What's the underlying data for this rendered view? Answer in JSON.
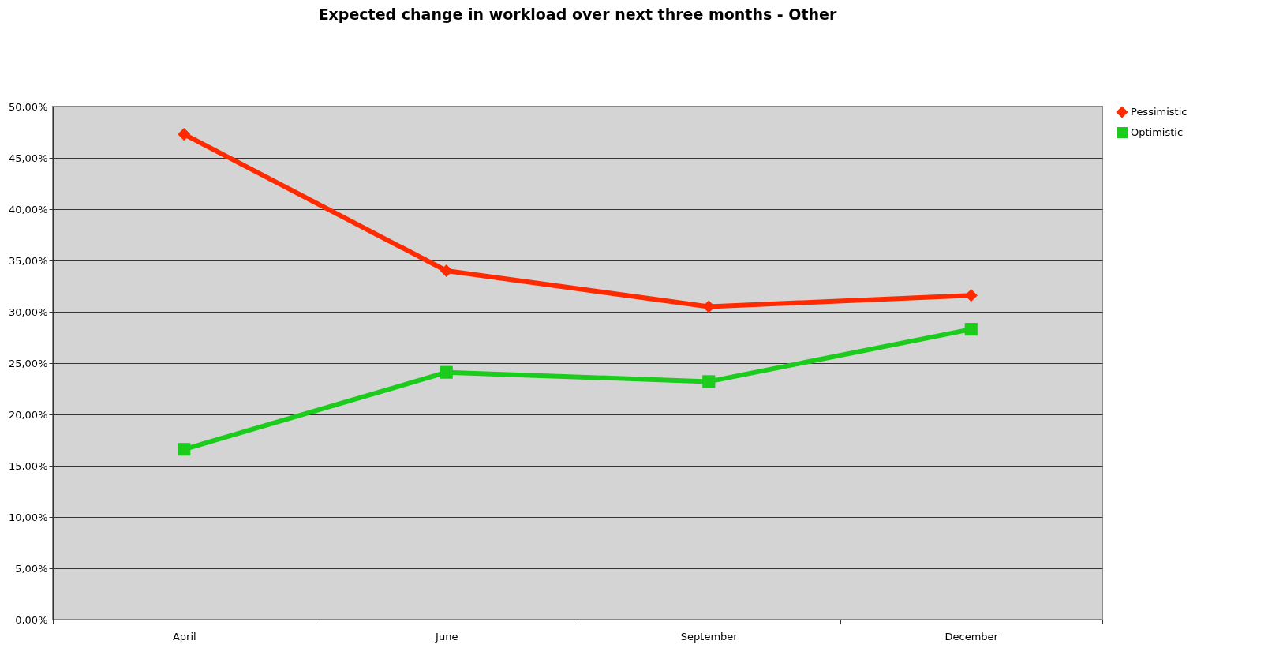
{
  "chart_data": {
    "type": "line",
    "title": "Expected change in workload over next three months - Other",
    "categories": [
      "April",
      "June",
      "September",
      "December"
    ],
    "series": [
      {
        "name": "Pessimistic",
        "color": "#ff2a00",
        "marker": "diamond",
        "values": [
          47.3,
          34.0,
          30.5,
          31.6
        ]
      },
      {
        "name": "Optimistic",
        "color": "#1ccc1c",
        "marker": "square",
        "values": [
          16.6,
          24.1,
          23.2,
          28.3
        ]
      }
    ],
    "ylim": [
      0,
      50
    ],
    "yticks": [
      {
        "value": 0,
        "label": "0,00%"
      },
      {
        "value": 5,
        "label": "5,00%"
      },
      {
        "value": 10,
        "label": "10,00%"
      },
      {
        "value": 15,
        "label": "15,00%"
      },
      {
        "value": 20,
        "label": "20,00%"
      },
      {
        "value": 25,
        "label": "25,00%"
      },
      {
        "value": 30,
        "label": "30,00%"
      },
      {
        "value": 35,
        "label": "35,00%"
      },
      {
        "value": 40,
        "label": "40,00%"
      },
      {
        "value": 45,
        "label": "45,00%"
      },
      {
        "value": 50,
        "label": "50,00%"
      }
    ],
    "grid": "y",
    "legend": "right",
    "line_style": "solid"
  }
}
